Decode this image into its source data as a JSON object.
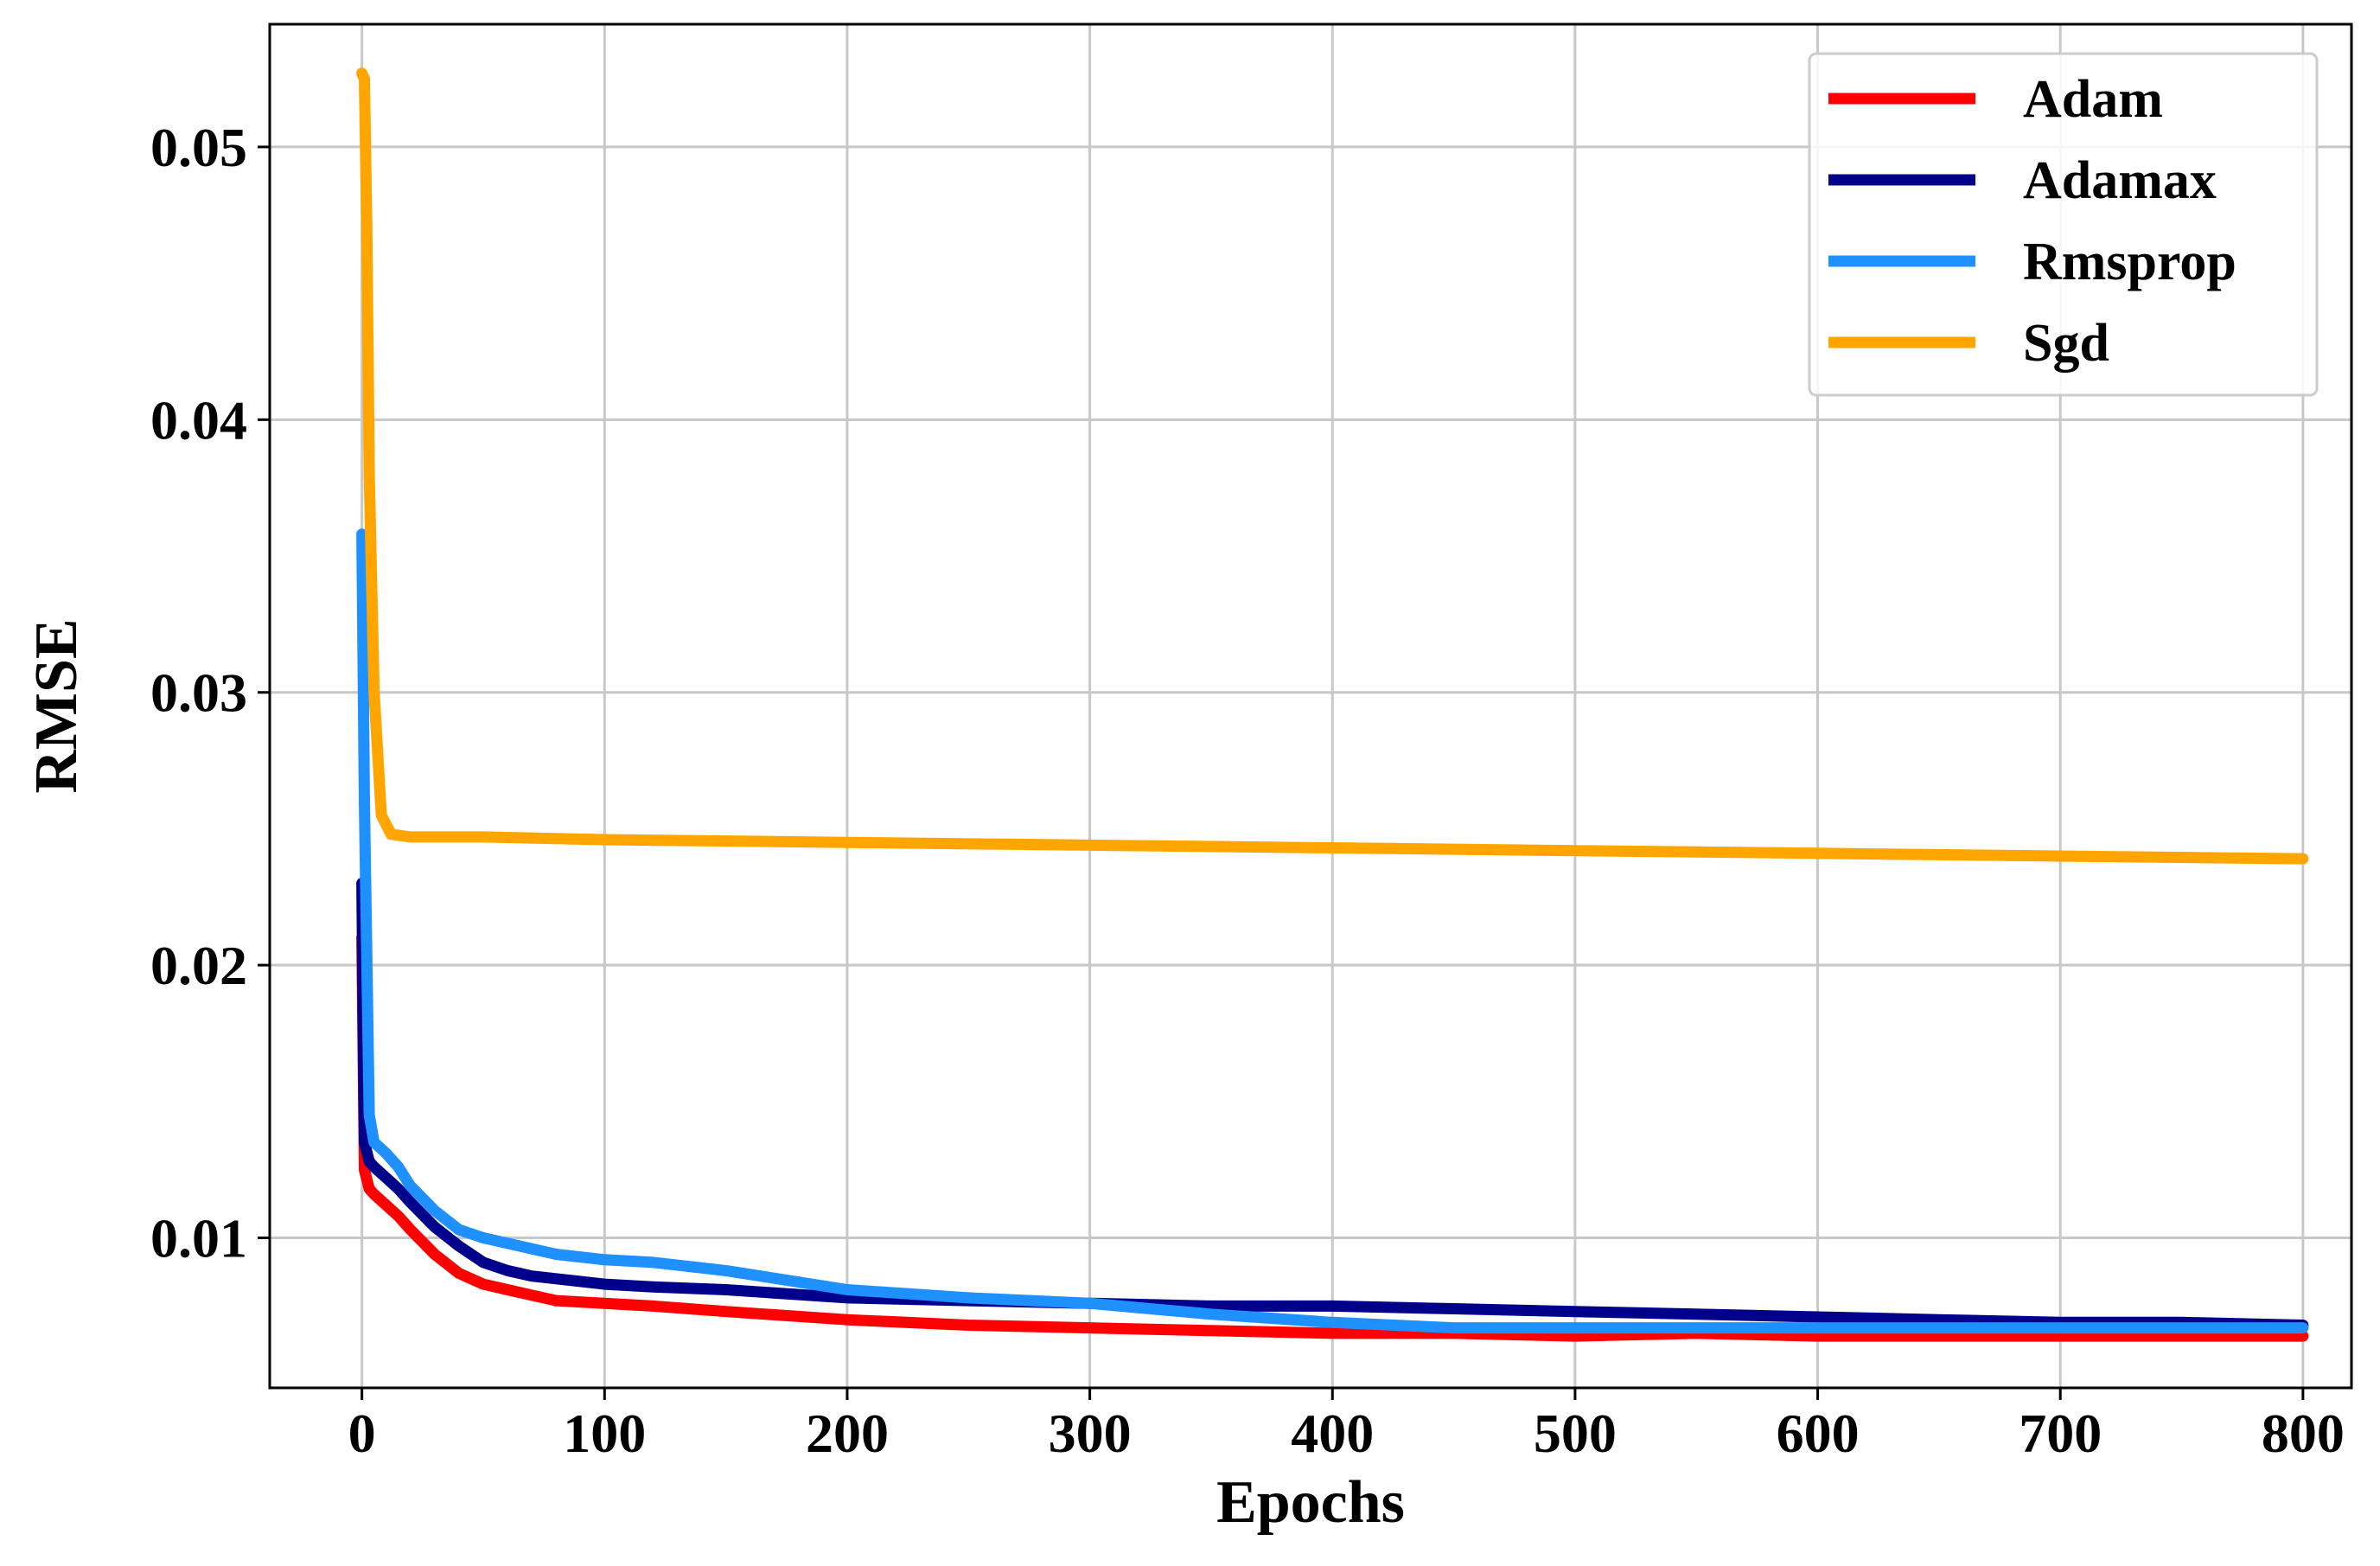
{
  "chart_data": {
    "type": "line",
    "title": "",
    "xlabel": "Epochs",
    "ylabel": "RMSE",
    "xlim": [
      -38,
      820
    ],
    "ylim": [
      0.0045,
      0.0545
    ],
    "grid": true,
    "legend_position": "top-right",
    "xticks": [
      0,
      100,
      200,
      300,
      400,
      500,
      600,
      700,
      800
    ],
    "xtick_labels": [
      "0",
      "100",
      "200",
      "300",
      "400",
      "500",
      "600",
      "700",
      "800"
    ],
    "yticks": [
      0.01,
      0.02,
      0.03,
      0.04,
      0.05
    ],
    "ytick_labels": [
      "0.01",
      "0.02",
      "0.03",
      "0.04",
      "0.05"
    ],
    "series": [
      {
        "name": "Adam",
        "color": "#ff0000",
        "x": [
          0,
          1,
          3,
          5,
          10,
          15,
          20,
          30,
          40,
          50,
          60,
          70,
          80,
          100,
          120,
          150,
          200,
          250,
          300,
          350,
          400,
          450,
          500,
          550,
          600,
          650,
          700,
          750,
          800
        ],
        "y": [
          0.021,
          0.0125,
          0.0118,
          0.0116,
          0.0112,
          0.0108,
          0.0103,
          0.0094,
          0.0087,
          0.0083,
          0.0081,
          0.0079,
          0.0077,
          0.0076,
          0.0075,
          0.0073,
          0.007,
          0.0068,
          0.0067,
          0.0066,
          0.0065,
          0.0065,
          0.0064,
          0.0065,
          0.0064,
          0.0064,
          0.0064,
          0.0064,
          0.0064
        ]
      },
      {
        "name": "Adamax",
        "color": "#00008b",
        "x": [
          0,
          1,
          3,
          5,
          10,
          15,
          20,
          30,
          40,
          50,
          60,
          70,
          80,
          100,
          120,
          150,
          200,
          250,
          300,
          350,
          400,
          450,
          500,
          550,
          600,
          650,
          700,
          750,
          800
        ],
        "y": [
          0.023,
          0.0135,
          0.0128,
          0.0126,
          0.0122,
          0.0118,
          0.0113,
          0.0104,
          0.0097,
          0.0091,
          0.0088,
          0.0086,
          0.0085,
          0.0083,
          0.0082,
          0.0081,
          0.0078,
          0.0077,
          0.0076,
          0.0075,
          0.0075,
          0.0074,
          0.0073,
          0.0072,
          0.0071,
          0.007,
          0.0069,
          0.0069,
          0.0068
        ]
      },
      {
        "name": "Rmsprop",
        "color": "#1e90ff",
        "x": [
          0,
          1,
          3,
          5,
          10,
          15,
          20,
          30,
          40,
          50,
          60,
          70,
          80,
          100,
          120,
          150,
          200,
          250,
          300,
          350,
          400,
          450,
          500,
          550,
          600,
          650,
          700,
          750,
          800
        ],
        "y": [
          0.0358,
          0.026,
          0.0145,
          0.0135,
          0.0131,
          0.0126,
          0.0119,
          0.011,
          0.0103,
          0.01,
          0.0098,
          0.0096,
          0.0094,
          0.0092,
          0.0091,
          0.0088,
          0.0081,
          0.0078,
          0.0076,
          0.0072,
          0.0069,
          0.0067,
          0.0067,
          0.0067,
          0.0067,
          0.0067,
          0.0067,
          0.0067,
          0.0067
        ]
      },
      {
        "name": "Sgd",
        "color": "#ffa500",
        "x": [
          0,
          1,
          2,
          3,
          5,
          8,
          12,
          20,
          50,
          100,
          200,
          300,
          400,
          500,
          600,
          700,
          800
        ],
        "y": [
          0.0527,
          0.0525,
          0.047,
          0.038,
          0.03,
          0.0255,
          0.0248,
          0.0247,
          0.0247,
          0.0246,
          0.0245,
          0.0244,
          0.0243,
          0.0242,
          0.0241,
          0.024,
          0.0239
        ]
      }
    ]
  }
}
